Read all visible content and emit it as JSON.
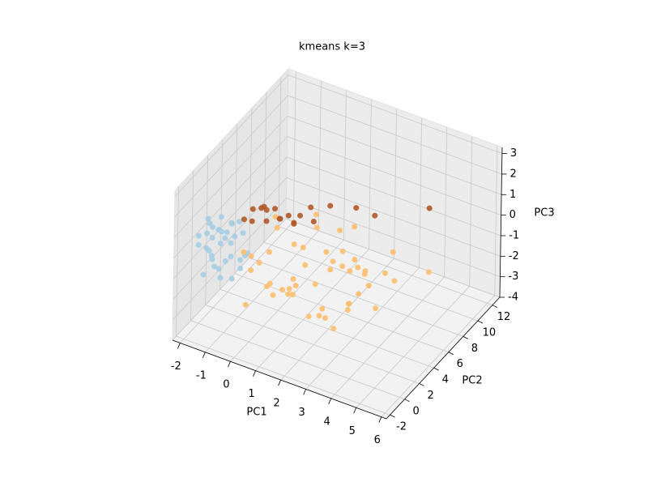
{
  "chart_data": {
    "type": "scatter3d",
    "title": "kmeans k=3",
    "xlabel": "PC1",
    "ylabel": "PC2",
    "zlabel": "PC3",
    "xlim": [
      -2.3,
      6.2
    ],
    "ylim": [
      -2.5,
      13
    ],
    "zlim": [
      -4,
      3.3
    ],
    "xticks": [
      -2,
      -1,
      0,
      1,
      2,
      3,
      4,
      5,
      6
    ],
    "yticks": [
      -2,
      0,
      2,
      4,
      6,
      8,
      10,
      12
    ],
    "zticks": [
      -4,
      -3,
      -2,
      -1,
      0,
      1,
      2,
      3
    ],
    "series": [
      {
        "color": "#a6cee3",
        "x": [
          -2.1,
          -1.9,
          -1.8,
          -1.7,
          -1.6,
          -1.5,
          -1.4,
          -1.3,
          -1.2,
          -1.1,
          -1.0,
          -0.9,
          -0.8,
          -0.7,
          -0.6,
          -1.95,
          -1.75,
          -1.55,
          -1.35,
          -1.15,
          -0.95,
          -0.75,
          -1.85,
          -1.45,
          -1.05,
          -0.65,
          -1.65,
          -1.25,
          -0.85,
          -2.0,
          -1.5,
          -1.0,
          -0.55,
          -1.7,
          -1.3
        ],
        "y": [
          0.2,
          -0.5,
          1.0,
          0.3,
          1.5,
          -0.8,
          0.6,
          2.0,
          -0.2,
          1.2,
          0.0,
          1.8,
          -0.6,
          0.9,
          1.4,
          1.6,
          -0.3,
          2.2,
          0.4,
          -0.9,
          0.7,
          2.3,
          0.8,
          1.1,
          -0.4,
          0.1,
          -0.1,
          1.7,
          0.5,
          1.0,
          0.0,
          2.5,
          0.6,
          1.9,
          -0.7
        ],
        "z": [
          -0.3,
          0.5,
          -1.0,
          0.9,
          -0.5,
          0.2,
          -1.3,
          0.4,
          1.0,
          -0.8,
          0.6,
          -1.1,
          -0.2,
          1.2,
          -0.6,
          0.1,
          -1.4,
          -0.2,
          0.7,
          -0.5,
          1.1,
          -0.9,
          -0.7,
          0.3,
          -1.2,
          0.8,
          1.3,
          -0.4,
          -1.5,
          0.0,
          0.4,
          -0.1,
          -0.9,
          0.6,
          -0.3
        ]
      },
      {
        "color": "#fdbf6f",
        "x": [
          -0.4,
          -0.2,
          0,
          0.2,
          0.4,
          0.6,
          0.8,
          1.0,
          1.2,
          1.4,
          1.6,
          1.8,
          2.0,
          2.2,
          2.4,
          2.6,
          2.8,
          3.0,
          3.2,
          3.4,
          3.6,
          3.8,
          4.0,
          -0.3,
          0.1,
          0.5,
          0.9,
          1.3,
          1.7,
          2.1,
          2.5,
          2.9,
          3.3,
          3.7,
          0.3,
          0.7,
          1.1,
          1.5,
          1.9,
          2.3,
          2.7,
          3.1,
          3.5,
          -0.1,
          0.6,
          1.4,
          2.2,
          3.0,
          4.3,
          4.8
        ],
        "y": [
          0.5,
          2.0,
          -0.5,
          3.0,
          1.0,
          4.0,
          0.0,
          2.5,
          5.0,
          1.5,
          3.5,
          -0.8,
          4.5,
          2.0,
          6.0,
          1.0,
          3.0,
          5.5,
          0.5,
          4.0,
          2.5,
          6.5,
          3.5,
          1.2,
          -0.2,
          2.8,
          4.2,
          0.8,
          5.2,
          3.2,
          1.8,
          4.8,
          2.2,
          5.8,
          1.6,
          3.6,
          -0.6,
          2.4,
          6.2,
          0.2,
          4.4,
          3.0,
          1.4,
          3.8,
          7.0,
          7.5,
          6.8,
          6.0,
          5.0,
          8.0
        ],
        "z": [
          0.0,
          -1.0,
          -2.0,
          0.5,
          -1.5,
          -0.5,
          -0.8,
          -2.2,
          0.2,
          -1.2,
          -1.8,
          -0.3,
          -0.9,
          -2.5,
          0.4,
          -1.6,
          -0.2,
          -1.3,
          -2.1,
          -0.7,
          -1.0,
          -0.4,
          -1.9,
          -1.1,
          0.3,
          -2.3,
          -0.6,
          -1.4,
          -1.7,
          0.1,
          -2.4,
          -0.9,
          -1.5,
          -1.2,
          -0.1,
          -2.0,
          -1.0,
          -0.5,
          -1.1,
          -1.8,
          -2.6,
          -0.3,
          -1.4,
          0.6,
          -0.2,
          -0.8,
          -1.6,
          -2.2,
          -1.0,
          -1.5
        ]
      },
      {
        "color": "#b15928",
        "x": [
          -0.4,
          -0.2,
          0,
          0.2,
          0.4,
          0.6,
          0.8,
          1.0,
          1.2,
          -0.1,
          0.3,
          0.7,
          1.1,
          0.5,
          1.5,
          2.0,
          2.6,
          3.2,
          4.5,
          1.8
        ],
        "y": [
          0.5,
          1.0,
          0.2,
          1.5,
          0.8,
          2.0,
          1.2,
          2.5,
          1.8,
          2.2,
          0.4,
          2.8,
          3.0,
          1.6,
          3.5,
          4.0,
          5.5,
          6.0,
          9.0,
          2.0
        ],
        "z": [
          1.6,
          2.0,
          1.8,
          1.4,
          2.3,
          1.5,
          1.9,
          1.3,
          1.6,
          1.7,
          2.5,
          1.4,
          1.5,
          2.1,
          1.2,
          2.0,
          1.6,
          1.3,
          1.1,
          2.6
        ]
      }
    ]
  }
}
